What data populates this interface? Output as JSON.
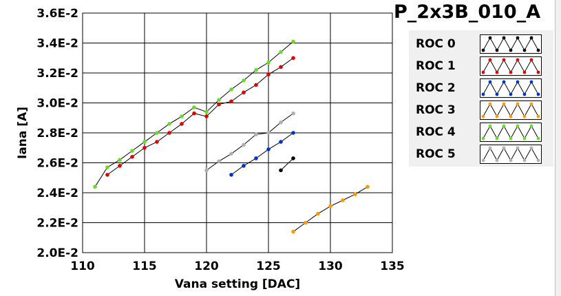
{
  "chart_data": {
    "type": "scatter",
    "title": "P_2x3B_010_A",
    "xlabel": "Vana setting [DAC]",
    "ylabel": "Iana [A]",
    "xlim": [
      110,
      135
    ],
    "ylim": [
      0.02,
      0.036
    ],
    "x_ticks": [
      "110",
      "115",
      "120",
      "125",
      "130",
      "135"
    ],
    "y_ticks": [
      "2.0E-2",
      "2.2E-2",
      "2.4E-2",
      "2.6E-2",
      "2.8E-2",
      "3.0E-2",
      "3.2E-2",
      "3.4E-2",
      "3.6E-2"
    ],
    "grid": true,
    "legend_position": "right",
    "series": [
      {
        "name": "ROC 0",
        "color": "#000000",
        "x": [
          126,
          127
        ],
        "y": [
          0.0255,
          0.0263
        ]
      },
      {
        "name": "ROC 1",
        "color": "#e00000",
        "x": [
          112,
          113,
          114,
          115,
          116,
          117,
          118,
          119,
          120,
          121,
          122,
          123,
          124,
          125,
          126,
          127
        ],
        "y": [
          0.0252,
          0.0258,
          0.0264,
          0.027,
          0.0274,
          0.028,
          0.0286,
          0.0293,
          0.0291,
          0.0299,
          0.0301,
          0.0307,
          0.0312,
          0.0319,
          0.0324,
          0.033
        ]
      },
      {
        "name": "ROC 2",
        "color": "#0033cc",
        "x": [
          122,
          123,
          124,
          125,
          126,
          127
        ],
        "y": [
          0.0252,
          0.0258,
          0.0263,
          0.0269,
          0.0274,
          0.028
        ]
      },
      {
        "name": "ROC 3",
        "color": "#ff9900",
        "x": [
          127,
          128,
          129,
          130,
          131,
          132,
          133
        ],
        "y": [
          0.0214,
          0.022,
          0.0226,
          0.0231,
          0.0235,
          0.0239,
          0.0244
        ]
      },
      {
        "name": "ROC 4",
        "color": "#66dd22",
        "x": [
          111,
          112,
          113,
          114,
          115,
          116,
          117,
          118,
          119,
          120,
          121,
          122,
          123,
          124,
          125,
          126,
          127
        ],
        "y": [
          0.0244,
          0.0257,
          0.0262,
          0.0268,
          0.0274,
          0.028,
          0.0286,
          0.0291,
          0.0297,
          0.0294,
          0.0302,
          0.0309,
          0.0315,
          0.0322,
          0.0327,
          0.0334,
          0.0341
        ]
      },
      {
        "name": "ROC 5",
        "color": "#b0b0b0",
        "x": [
          120,
          121,
          122,
          123,
          124,
          125,
          126,
          127
        ],
        "y": [
          0.0255,
          0.0261,
          0.0266,
          0.0272,
          0.0279,
          0.028,
          0.0287,
          0.0293
        ]
      }
    ]
  }
}
